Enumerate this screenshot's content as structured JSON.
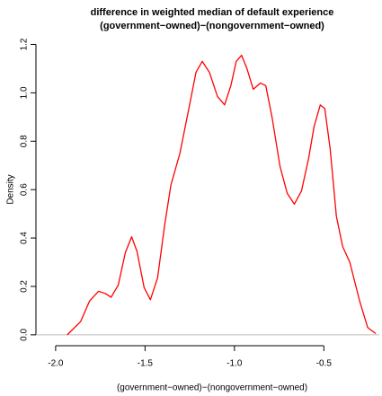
{
  "chart_data": {
    "type": "line",
    "title": [
      "difference in weighted median of default experience",
      "(government−owned)−(nongovernment−owned)"
    ],
    "xlabel": "(government−owned)−(nongovernment−owned)",
    "ylabel": "Density",
    "xlim": [
      -2.11,
      -0.19
    ],
    "ylim": [
      -0.045,
      1.25
    ],
    "xticks": [
      {
        "value": -2,
        "label": "-2.0"
      },
      -1.5,
      {
        "value": -1,
        "label": "-1.0"
      },
      -0.5
    ],
    "yticks": [
      {
        "value": 0,
        "label": "0.0"
      },
      0.2,
      0.4,
      0.6,
      0.8,
      {
        "value": 1,
        "label": "1.0"
      },
      1.2
    ],
    "zero_line_color": "#bebebe",
    "series": [
      {
        "color": "#ff0000",
        "x": [
          -1.935,
          -1.86,
          -1.81,
          -1.76,
          -1.72,
          -1.69,
          -1.65,
          -1.61,
          -1.575,
          -1.545,
          -1.505,
          -1.47,
          -1.43,
          -1.39,
          -1.355,
          -1.305,
          -1.255,
          -1.215,
          -1.18,
          -1.14,
          -1.095,
          -1.055,
          -1.02,
          -0.99,
          -0.96,
          -0.93,
          -0.895,
          -0.855,
          -0.825,
          -0.79,
          -0.745,
          -0.705,
          -0.665,
          -0.625,
          -0.585,
          -0.555,
          -0.52,
          -0.495,
          -0.465,
          -0.43,
          -0.395,
          -0.355,
          -0.3,
          -0.255,
          -0.21
        ],
        "values": [
          0.0,
          0.055,
          0.14,
          0.18,
          0.17,
          0.155,
          0.205,
          0.34,
          0.405,
          0.345,
          0.195,
          0.145,
          0.235,
          0.455,
          0.62,
          0.75,
          0.935,
          1.085,
          1.13,
          1.085,
          0.985,
          0.95,
          1.03,
          1.13,
          1.155,
          1.1,
          1.015,
          1.04,
          1.03,
          0.9,
          0.695,
          0.585,
          0.54,
          0.595,
          0.73,
          0.86,
          0.95,
          0.935,
          0.77,
          0.49,
          0.365,
          0.3,
          0.14,
          0.03,
          0.005
        ]
      }
    ]
  }
}
